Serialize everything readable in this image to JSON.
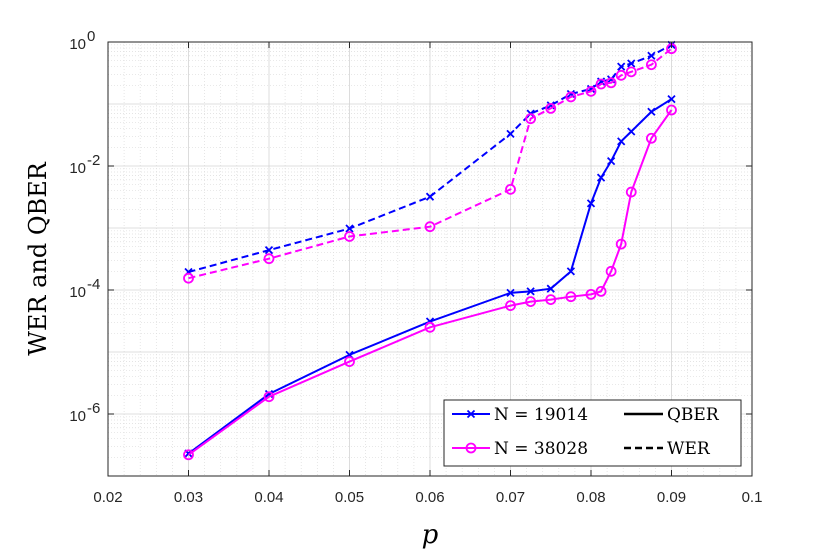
{
  "chart_data": {
    "type": "line",
    "xlabel": "p",
    "ylabel": "WER and QBER",
    "xlim": [
      0.02,
      0.1
    ],
    "ylim": [
      1e-07,
      1
    ],
    "yscale": "log",
    "grid": true,
    "minor_grid": true,
    "x_ticks": [
      "0.02",
      "0.03",
      "0.04",
      "0.05",
      "0.06",
      "0.07",
      "0.08",
      "0.09",
      "0.1"
    ],
    "y_ticks": [
      {
        "base": "10",
        "exp": "-6",
        "value": 1e-06
      },
      {
        "base": "10",
        "exp": "-4",
        "value": 0.0001
      },
      {
        "base": "10",
        "exp": "-2",
        "value": 0.01
      },
      {
        "base": "10",
        "exp": "0",
        "value": 1
      }
    ],
    "series": [
      {
        "name": "N = 19014",
        "metric": "QBER",
        "color": "#0000FF",
        "marker": "x",
        "dash": "solid",
        "points": [
          [
            0.03,
            2.3e-07
          ],
          [
            0.04,
            2.1e-06
          ],
          [
            0.05,
            9e-06
          ],
          [
            0.06,
            3.1e-05
          ],
          [
            0.07,
            9e-05
          ],
          [
            0.0725,
            9.5e-05
          ],
          [
            0.075,
            0.000105
          ],
          [
            0.0775,
            0.0002
          ],
          [
            0.08,
            0.0025
          ],
          [
            0.08125,
            0.0065
          ],
          [
            0.0825,
            0.012
          ],
          [
            0.08375,
            0.025
          ],
          [
            0.085,
            0.036
          ],
          [
            0.0875,
            0.075
          ],
          [
            0.09,
            0.12
          ]
        ]
      },
      {
        "name": "N = 38028",
        "metric": "QBER",
        "color": "#FF00FF",
        "marker": "o",
        "dash": "solid",
        "points": [
          [
            0.03,
            2.2e-07
          ],
          [
            0.04,
            1.9e-06
          ],
          [
            0.05,
            7e-06
          ],
          [
            0.06,
            2.5e-05
          ],
          [
            0.07,
            5.6e-05
          ],
          [
            0.0725,
            6.5e-05
          ],
          [
            0.075,
            7e-05
          ],
          [
            0.0775,
            7.8e-05
          ],
          [
            0.08,
            8.5e-05
          ],
          [
            0.08125,
            9.5e-05
          ],
          [
            0.0825,
            0.0002
          ],
          [
            0.08375,
            0.00055
          ],
          [
            0.085,
            0.0038
          ],
          [
            0.0875,
            0.028
          ],
          [
            0.09,
            0.08
          ]
        ]
      },
      {
        "name": "N = 19014",
        "metric": "WER",
        "color": "#0000FF",
        "marker": "x",
        "dash": "dashed",
        "points": [
          [
            0.03,
            0.000195
          ],
          [
            0.04,
            0.00044
          ],
          [
            0.05,
            0.00098
          ],
          [
            0.06,
            0.0032
          ],
          [
            0.07,
            0.033
          ],
          [
            0.0725,
            0.07
          ],
          [
            0.075,
            0.095
          ],
          [
            0.0775,
            0.145
          ],
          [
            0.08,
            0.175
          ],
          [
            0.08125,
            0.23
          ],
          [
            0.0825,
            0.25
          ],
          [
            0.08375,
            0.4
          ],
          [
            0.085,
            0.45
          ],
          [
            0.0875,
            0.6
          ],
          [
            0.09,
            0.9
          ]
        ]
      },
      {
        "name": "N = 38028",
        "metric": "WER",
        "color": "#FF00FF",
        "marker": "o",
        "dash": "dashed",
        "points": [
          [
            0.03,
            0.000155
          ],
          [
            0.04,
            0.00032
          ],
          [
            0.05,
            0.00073
          ],
          [
            0.06,
            0.00105
          ],
          [
            0.07,
            0.0042
          ],
          [
            0.0725,
            0.058
          ],
          [
            0.075,
            0.085
          ],
          [
            0.0775,
            0.13
          ],
          [
            0.08,
            0.16
          ],
          [
            0.08125,
            0.21
          ],
          [
            0.0825,
            0.22
          ],
          [
            0.08375,
            0.29
          ],
          [
            0.085,
            0.33
          ],
          [
            0.0875,
            0.43
          ],
          [
            0.09,
            0.78
          ]
        ]
      }
    ],
    "legend": {
      "placement": "bottom-right",
      "entries": [
        {
          "label": "N = 19014",
          "color": "#0000FF",
          "marker": "x"
        },
        {
          "label": "N = 38028",
          "color": "#FF00FF",
          "marker": "o"
        }
      ],
      "styles": [
        {
          "label": "QBER",
          "dash": "solid"
        },
        {
          "label": "WER",
          "dash": "dashed"
        }
      ]
    }
  }
}
